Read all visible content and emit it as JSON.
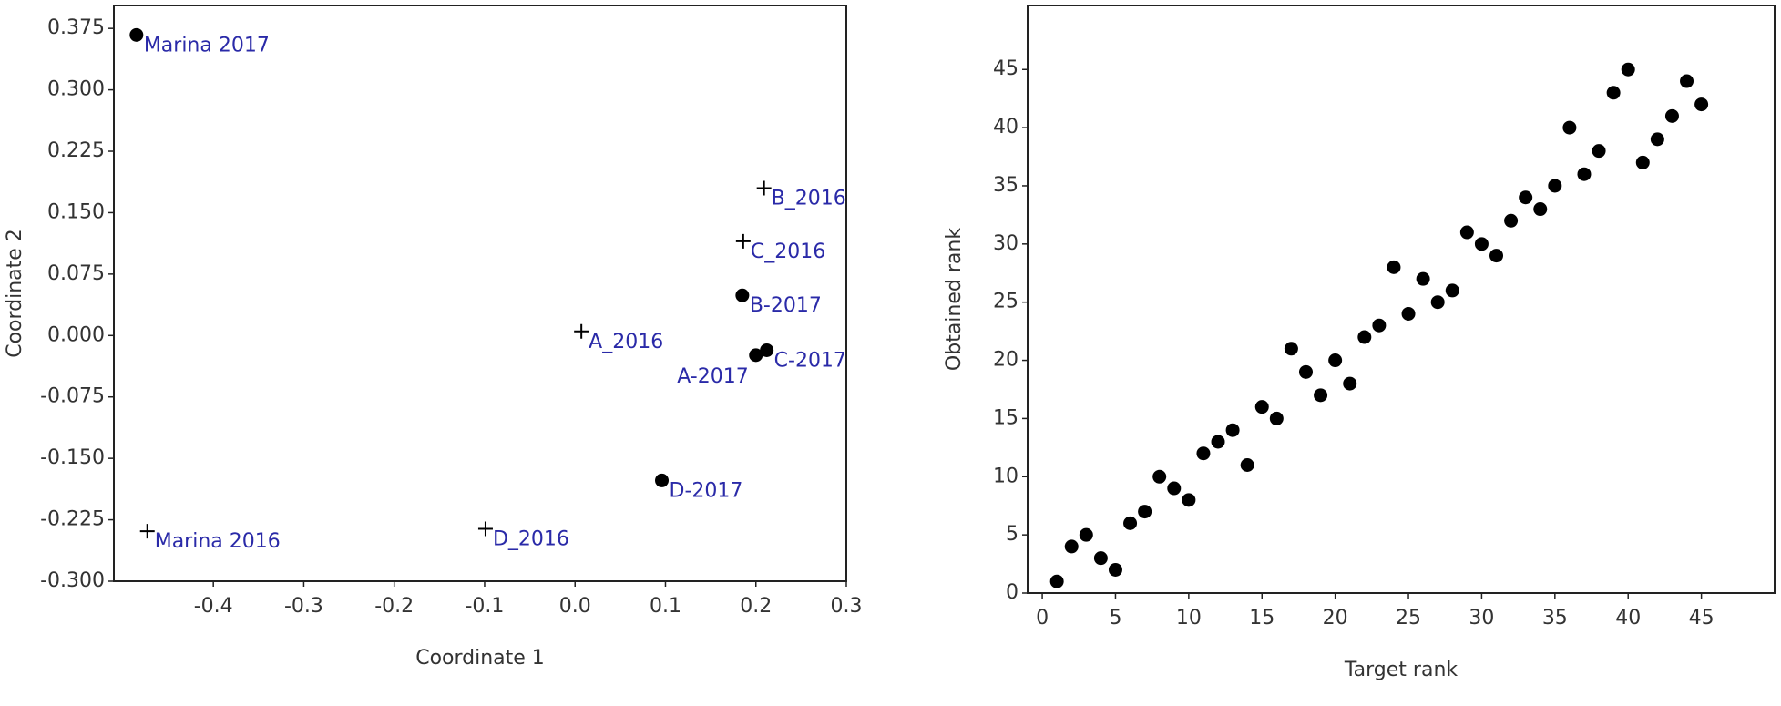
{
  "chart_data": [
    {
      "type": "scatter",
      "x_label": "Coordinate 1",
      "y_label": "Coordinate 2",
      "xlim": [
        -0.51,
        0.3
      ],
      "ylim": [
        -0.3,
        0.403
      ],
      "xticks": [
        -0.4,
        -0.3,
        -0.2,
        -0.1,
        {
          "value": 0,
          "label": "0.0"
        },
        0.1,
        0.2,
        0.3
      ],
      "yticks": [
        {
          "value": -0.3,
          "label": "-0.300"
        },
        -0.225,
        {
          "value": -0.15,
          "label": "-0.150"
        },
        -0.075,
        {
          "value": 0,
          "label": "0.000"
        },
        0.075,
        {
          "value": 0.15,
          "label": "0.150"
        },
        0.225,
        {
          "value": 0.3,
          "label": "0.300"
        },
        0.375
      ],
      "label_color": "#2a2aa8",
      "series": [
        {
          "marker": "circle",
          "color": "#000000",
          "x": [
            -0.485,
            0.096,
            0.2,
            0.212,
            0.185
          ],
          "values": [
            0.367,
            -0.177,
            -0.024,
            -0.018,
            0.049
          ],
          "labels": [
            "Marina 2017",
            "D-2017",
            "A-2017",
            "C-2017",
            "B-2017"
          ]
        },
        {
          "marker": "plus",
          "color": "#000000",
          "x": [
            -0.473,
            -0.099,
            0.007,
            0.186,
            0.209
          ],
          "values": [
            -0.239,
            -0.236,
            0.005,
            0.115,
            0.18
          ],
          "labels": [
            "Marina 2016",
            "D_2016",
            "A_2016",
            "C_2016",
            "B_2016"
          ]
        }
      ]
    },
    {
      "type": "scatter",
      "x_label": "Target rank",
      "y_label": "Obtained rank",
      "xlim": [
        -1,
        50
      ],
      "ylim": [
        0,
        50.5
      ],
      "xticks": [
        0,
        5,
        10,
        15,
        20,
        25,
        30,
        35,
        40,
        45
      ],
      "yticks": [
        0,
        5,
        10,
        15,
        20,
        25,
        30,
        35,
        40,
        45
      ],
      "series": [
        {
          "marker": "circle",
          "color": "#000000",
          "x": [
            1,
            2,
            3,
            4,
            5,
            6,
            7,
            8,
            9,
            10,
            11,
            12,
            13,
            14,
            15,
            16,
            17,
            18,
            19,
            20,
            21,
            22,
            23,
            24,
            25,
            26,
            27,
            28,
            29,
            30,
            31,
            32,
            33,
            34,
            35,
            36,
            37,
            38,
            39,
            40,
            41,
            42,
            43,
            44,
            45
          ],
          "values": [
            1,
            4,
            5,
            3,
            2,
            6,
            7,
            10,
            9,
            8,
            12,
            13,
            14,
            11,
            16,
            15,
            21,
            19,
            17,
            20,
            18,
            22,
            23,
            28,
            24,
            27,
            25,
            26,
            31,
            30,
            29,
            32,
            34,
            33,
            35,
            40,
            36,
            38,
            43,
            45,
            37,
            39,
            41,
            44,
            42
          ]
        }
      ]
    }
  ]
}
